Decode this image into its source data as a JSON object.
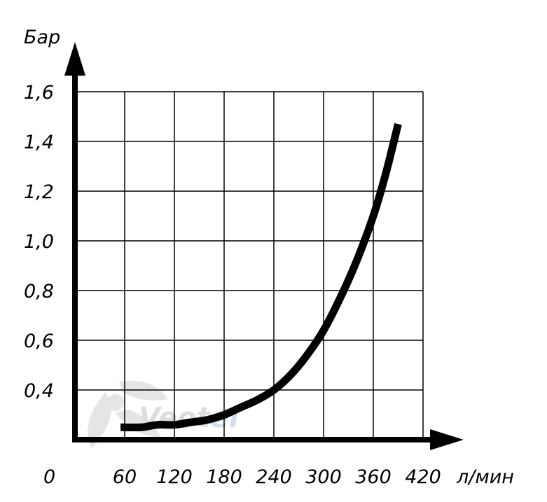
{
  "chart_data": {
    "type": "line",
    "title": "",
    "xlabel": "л/мин",
    "ylabel": "Бар",
    "origin_label": "0",
    "x_ticks": [
      "60",
      "120",
      "180",
      "240",
      "300",
      "360",
      "420"
    ],
    "y_ticks": [
      "0,4",
      "0,6",
      "0,8",
      "1,0",
      "1,2",
      "1,4",
      "1,6"
    ],
    "xlim": [
      0,
      420
    ],
    "ylim": [
      0.2,
      1.6
    ],
    "grid": true,
    "legend": "none",
    "series": [
      {
        "color": "#000000",
        "x": [
          55,
          80,
          100,
          120,
          140,
          160,
          180,
          200,
          220,
          240,
          260,
          280,
          300,
          320,
          340,
          360,
          375,
          390
        ],
        "y": [
          0.25,
          0.25,
          0.26,
          0.26,
          0.27,
          0.28,
          0.3,
          0.33,
          0.36,
          0.4,
          0.46,
          0.54,
          0.64,
          0.77,
          0.92,
          1.1,
          1.27,
          1.47
        ]
      }
    ]
  },
  "watermark": {
    "text_dark": "Veo",
    "text_mid": "t",
    "text_accent": "el",
    "colors": {
      "dark": "#d8d8d8",
      "accent": "#c9dcef"
    }
  }
}
